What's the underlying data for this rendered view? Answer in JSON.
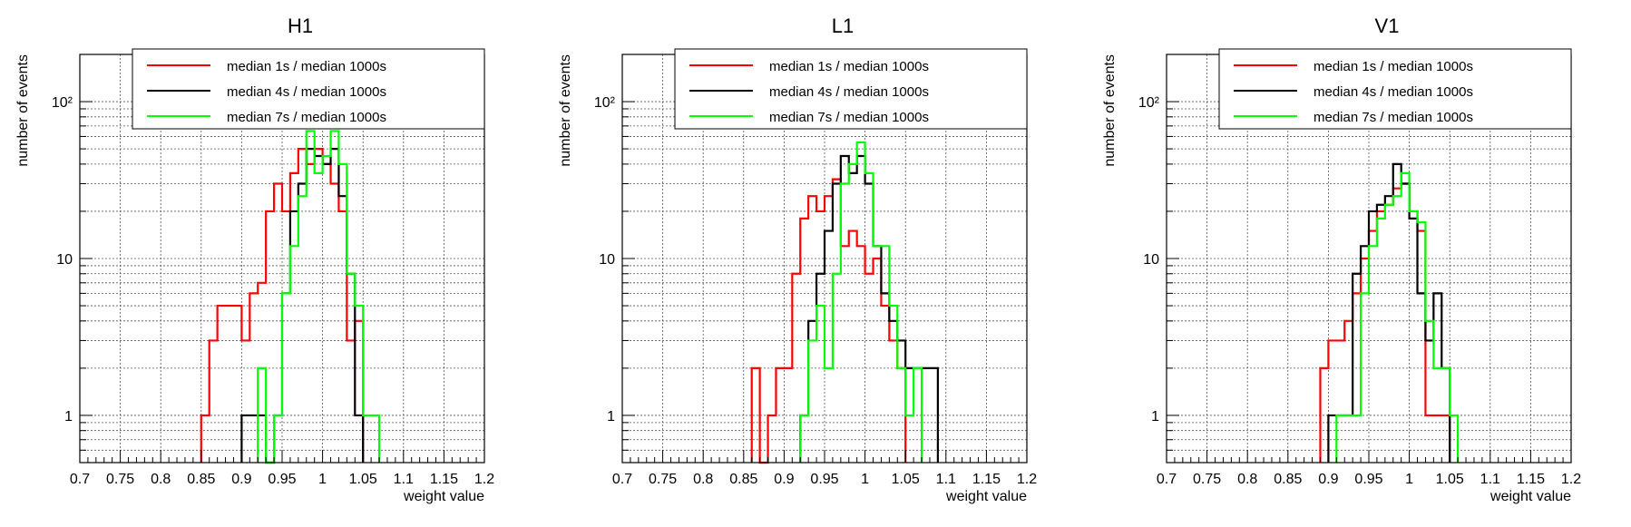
{
  "chart_data": [
    {
      "type": "histogram",
      "title": "H1",
      "xlabel": "weight value",
      "ylabel": "number of events",
      "xlim": [
        0.7,
        1.2
      ],
      "ylim": [
        0.5,
        200
      ],
      "log_y": true,
      "grid": true,
      "legend_position": "top-right",
      "x_ticks": [
        "0.7",
        "0.75",
        "0.8",
        "0.85",
        "0.9",
        "0.95",
        "1",
        "1.05",
        "1.1",
        "1.15",
        "1.2"
      ],
      "y_ticks": [
        "1",
        "10",
        "10²"
      ],
      "bin_width": 0.01,
      "series": [
        {
          "name": "median 1s / median 1000s",
          "color": "#ff0000",
          "points": [
            [
              0.85,
              1
            ],
            [
              0.86,
              3
            ],
            [
              0.87,
              5
            ],
            [
              0.88,
              5
            ],
            [
              0.89,
              5
            ],
            [
              0.9,
              3
            ],
            [
              0.91,
              6
            ],
            [
              0.92,
              7
            ],
            [
              0.93,
              20
            ],
            [
              0.94,
              30
            ],
            [
              0.95,
              20
            ],
            [
              0.96,
              35
            ],
            [
              0.97,
              50
            ],
            [
              0.98,
              40
            ],
            [
              0.99,
              50
            ],
            [
              1.0,
              40
            ],
            [
              1.01,
              30
            ],
            [
              1.02,
              20
            ],
            [
              1.03,
              3
            ],
            [
              1.04,
              4
            ]
          ]
        },
        {
          "name": "median 4s / median 1000s",
          "color": "#000000",
          "points": [
            [
              0.9,
              1
            ],
            [
              0.91,
              1
            ],
            [
              0.92,
              1
            ],
            [
              0.93,
              0
            ],
            [
              0.94,
              1
            ],
            [
              0.95,
              6
            ],
            [
              0.96,
              20
            ],
            [
              0.97,
              30
            ],
            [
              0.98,
              50
            ],
            [
              0.99,
              45
            ],
            [
              1.0,
              40
            ],
            [
              1.01,
              50
            ],
            [
              1.02,
              25
            ],
            [
              1.03,
              8
            ],
            [
              1.04,
              1
            ]
          ]
        },
        {
          "name": "median 7s / median 1000s",
          "color": "#00ff00",
          "points": [
            [
              0.92,
              2
            ],
            [
              0.93,
              0
            ],
            [
              0.94,
              1
            ],
            [
              0.95,
              6
            ],
            [
              0.96,
              12
            ],
            [
              0.97,
              25
            ],
            [
              0.98,
              65
            ],
            [
              0.99,
              35
            ],
            [
              1.0,
              45
            ],
            [
              1.01,
              65
            ],
            [
              1.02,
              40
            ],
            [
              1.03,
              8
            ],
            [
              1.04,
              5
            ],
            [
              1.05,
              1
            ],
            [
              1.06,
              1
            ]
          ]
        }
      ]
    },
    {
      "type": "histogram",
      "title": "L1",
      "xlabel": "weight value",
      "ylabel": "number of events",
      "xlim": [
        0.7,
        1.2
      ],
      "ylim": [
        0.5,
        200
      ],
      "log_y": true,
      "grid": true,
      "legend_position": "top-right",
      "x_ticks": [
        "0.7",
        "0.75",
        "0.8",
        "0.85",
        "0.9",
        "0.95",
        "1",
        "1.05",
        "1.1",
        "1.15",
        "1.2"
      ],
      "y_ticks": [
        "1",
        "10",
        "10²"
      ],
      "bin_width": 0.01,
      "series": [
        {
          "name": "median 1s / median 1000s",
          "color": "#ff0000",
          "points": [
            [
              0.86,
              2
            ],
            [
              0.87,
              0
            ],
            [
              0.88,
              1
            ],
            [
              0.89,
              2
            ],
            [
              0.9,
              2
            ],
            [
              0.91,
              8
            ],
            [
              0.92,
              18
            ],
            [
              0.93,
              25
            ],
            [
              0.94,
              20
            ],
            [
              0.95,
              25
            ],
            [
              0.96,
              32
            ],
            [
              0.97,
              12
            ],
            [
              0.98,
              15
            ],
            [
              0.99,
              12
            ],
            [
              1.0,
              8
            ],
            [
              1.01,
              10
            ],
            [
              1.02,
              5
            ],
            [
              1.03,
              3
            ],
            [
              1.04,
              2
            ]
          ]
        },
        {
          "name": "median 4s / median 1000s",
          "color": "#000000",
          "points": [
            [
              0.92,
              1
            ],
            [
              0.93,
              4
            ],
            [
              0.94,
              8
            ],
            [
              0.95,
              15
            ],
            [
              0.96,
              30
            ],
            [
              0.97,
              45
            ],
            [
              0.98,
              35
            ],
            [
              0.99,
              45
            ],
            [
              1.0,
              30
            ],
            [
              1.01,
              12
            ],
            [
              1.02,
              6
            ],
            [
              1.03,
              4
            ],
            [
              1.04,
              3
            ],
            [
              1.05,
              2
            ],
            [
              1.06,
              2
            ],
            [
              1.07,
              2
            ],
            [
              1.08,
              2
            ]
          ]
        },
        {
          "name": "median 7s / median 1000s",
          "color": "#00ff00",
          "points": [
            [
              0.92,
              1
            ],
            [
              0.93,
              3
            ],
            [
              0.94,
              5
            ],
            [
              0.95,
              2
            ],
            [
              0.96,
              8
            ],
            [
              0.97,
              30
            ],
            [
              0.98,
              40
            ],
            [
              0.99,
              55
            ],
            [
              1.0,
              35
            ],
            [
              1.01,
              12
            ],
            [
              1.02,
              12
            ],
            [
              1.03,
              5
            ],
            [
              1.04,
              2
            ],
            [
              1.05,
              1
            ],
            [
              1.06,
              2
            ]
          ]
        }
      ]
    },
    {
      "type": "histogram",
      "title": "V1",
      "xlabel": "weight value",
      "ylabel": "number of events",
      "xlim": [
        0.7,
        1.2
      ],
      "ylim": [
        0.5,
        200
      ],
      "log_y": true,
      "grid": true,
      "legend_position": "top-right",
      "x_ticks": [
        "0.7",
        "0.75",
        "0.8",
        "0.85",
        "0.9",
        "0.95",
        "1",
        "1.05",
        "1.1",
        "1.15",
        "1.2"
      ],
      "y_ticks": [
        "1",
        "10",
        "10²"
      ],
      "bin_width": 0.01,
      "series": [
        {
          "name": "median 1s / median 1000s",
          "color": "#ff0000",
          "points": [
            [
              0.89,
              2
            ],
            [
              0.9,
              3
            ],
            [
              0.91,
              3
            ],
            [
              0.92,
              4
            ],
            [
              0.93,
              6
            ],
            [
              0.94,
              10
            ],
            [
              0.95,
              15
            ],
            [
              0.96,
              20
            ],
            [
              0.97,
              22
            ],
            [
              0.98,
              28
            ],
            [
              0.99,
              30
            ],
            [
              1.0,
              20
            ],
            [
              1.01,
              15
            ],
            [
              1.02,
              1
            ],
            [
              1.03,
              1
            ],
            [
              1.04,
              1
            ]
          ]
        },
        {
          "name": "median 4s / median 1000s",
          "color": "#000000",
          "points": [
            [
              0.9,
              1
            ],
            [
              0.91,
              1
            ],
            [
              0.92,
              1
            ],
            [
              0.93,
              8
            ],
            [
              0.94,
              12
            ],
            [
              0.95,
              20
            ],
            [
              0.96,
              22
            ],
            [
              0.97,
              25
            ],
            [
              0.98,
              40
            ],
            [
              0.99,
              30
            ],
            [
              1.0,
              18
            ],
            [
              1.01,
              6
            ],
            [
              1.02,
              3
            ],
            [
              1.03,
              6
            ],
            [
              1.04,
              2
            ]
          ]
        },
        {
          "name": "median 7s / median 1000s",
          "color": "#00ff00",
          "points": [
            [
              0.91,
              1
            ],
            [
              0.92,
              1
            ],
            [
              0.93,
              1
            ],
            [
              0.94,
              6
            ],
            [
              0.95,
              12
            ],
            [
              0.96,
              18
            ],
            [
              0.97,
              22
            ],
            [
              0.98,
              25
            ],
            [
              0.99,
              35
            ],
            [
              1.0,
              20
            ],
            [
              1.01,
              17
            ],
            [
              1.02,
              4
            ],
            [
              1.03,
              2
            ],
            [
              1.04,
              2
            ],
            [
              1.05,
              1
            ]
          ]
        }
      ]
    }
  ]
}
